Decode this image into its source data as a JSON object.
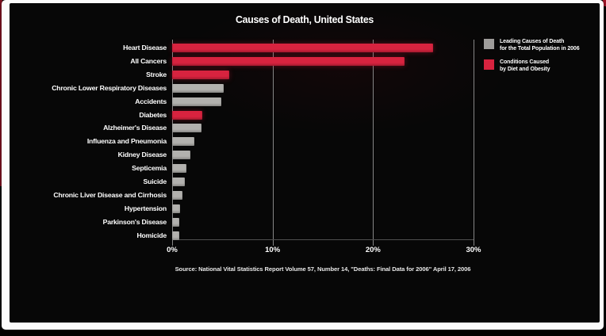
{
  "title": "Causes of Death, United States",
  "source": "Source: National Vital Statistics Report Volume 57, Number 14, \"Deaths: Final Data for 2006\"  April 17, 2006",
  "colors": {
    "accent_red": "#d8233f",
    "bar_gray": "#b2b1ae",
    "legend_gray": "#9e9c9a",
    "background": "#070707",
    "frame_white": "#fbfbfb",
    "gridline": "#868686"
  },
  "legend": {
    "items": [
      {
        "color": "#9e9c9a",
        "line1": "Leading Causes of Death",
        "line2": "for the Total Population in 2006"
      },
      {
        "color": "#d8233f",
        "line1": "Conditions Caused",
        "line2": "by Diet and Obesity"
      }
    ]
  },
  "chart_data": {
    "type": "bar",
    "orientation": "horizontal",
    "title": "Causes of Death, United States",
    "unit": "percent of total deaths",
    "categories": [
      "Heart Disease",
      "All Cancers",
      "Stroke",
      "Chronic Lower Respiratory Diseases",
      "Accidents",
      "Diabetes",
      "Alzheimer's Disease",
      "Influenza and Pneumonia",
      "Kidney Disease",
      "Septicemia",
      "Suicide",
      "Chronic Liver Disease and Cirrhosis",
      "Hypertension",
      "Parkinson's Disease",
      "Homicide"
    ],
    "values": [
      26.0,
      23.1,
      5.7,
      5.1,
      4.9,
      3.0,
      2.9,
      2.2,
      1.8,
      1.4,
      1.3,
      1.0,
      0.8,
      0.7,
      0.7
    ],
    "bar_colors": [
      "#d8233f",
      "#d8233f",
      "#d8233f",
      "#b2b1ae",
      "#b2b1ae",
      "#d8233f",
      "#b2b1ae",
      "#b2b1ae",
      "#b2b1ae",
      "#b2b1ae",
      "#b2b1ae",
      "#b2b1ae",
      "#b2b1ae",
      "#b2b1ae",
      "#b2b1ae"
    ],
    "group_of_bar": [
      "diet-obesity",
      "diet-obesity",
      "diet-obesity",
      "leading",
      "leading",
      "diet-obesity",
      "leading",
      "leading",
      "leading",
      "leading",
      "leading",
      "leading",
      "leading",
      "leading",
      "leading"
    ],
    "xlabel": "",
    "ylabel": "",
    "xlim": [
      0,
      30
    ],
    "xticks": [
      {
        "value": 0,
        "label": "0%"
      },
      {
        "value": 10,
        "label": "10%"
      },
      {
        "value": 20,
        "label": "20%"
      },
      {
        "value": 30,
        "label": "30%"
      }
    ],
    "grid": "vertical-at-ticks",
    "legend_position": "top-right"
  }
}
